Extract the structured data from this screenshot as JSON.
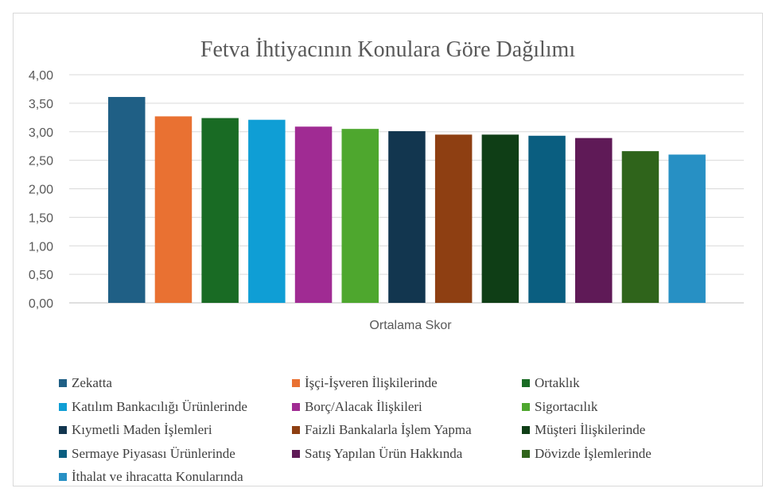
{
  "chart_data": {
    "type": "bar",
    "title": "Fetva İhtiyacının Konulara Göre Dağılımı",
    "xlabel": "Ortalama Skor",
    "ylabel": "",
    "ylim": [
      0,
      4
    ],
    "y_ticks": [
      "0,00",
      "0,50",
      "1,00",
      "1,50",
      "2,00",
      "2,50",
      "3,00",
      "3,50",
      "4,00"
    ],
    "grid": true,
    "legend_position": "bottom",
    "series": [
      {
        "name": "Zekatta",
        "value": 3.61,
        "color": "#1f5f85"
      },
      {
        "name": "İşçi-İşveren İlişkilerinde",
        "value": 3.27,
        "color": "#e97132"
      },
      {
        "name": "Ortaklık",
        "value": 3.24,
        "color": "#196b24"
      },
      {
        "name": "Katılım Bankacılığı Ürünlerinde",
        "value": 3.21,
        "color": "#0f9ed5"
      },
      {
        "name": "Borç/Alacak İlişkileri",
        "value": 3.09,
        "color": "#a02b93"
      },
      {
        "name": "Sigortacılık",
        "value": 3.05,
        "color": "#4ea72e"
      },
      {
        "name": "Kıymetli Maden İşlemleri",
        "value": 3.01,
        "color": "#12364f"
      },
      {
        "name": "Faizli Bankalarla İşlem Yapma",
        "value": 2.95,
        "color": "#8e3f12"
      },
      {
        "name": "Müşteri İlişkilerinde",
        "value": 2.95,
        "color": "#0f3e16"
      },
      {
        "name": "Sermaye Piyasası Ürünlerinde",
        "value": 2.93,
        "color": "#0a5e80"
      },
      {
        "name": "Satış Yapılan Ürün Hakkında",
        "value": 2.89,
        "color": "#5f1a57"
      },
      {
        "name": "Dövizde İşlemlerinde",
        "value": 2.66,
        "color": "#2f641b"
      },
      {
        "name": "İthalat ve ihracatta Konularında",
        "value": 2.6,
        "color": "#2790c4"
      }
    ]
  }
}
